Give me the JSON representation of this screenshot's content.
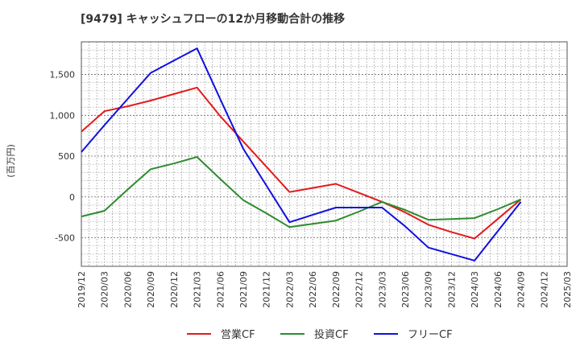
{
  "chart_data": {
    "type": "line",
    "title": "[9479]  キャッシュフローの12か月移動合計の推移",
    "ylabel": "(百万円)",
    "xlabel": "",
    "categories": [
      "2019/12",
      "2020/03",
      "2020/06",
      "2020/09",
      "2020/12",
      "2021/03",
      "2021/06",
      "2021/09",
      "2021/12",
      "2022/03",
      "2022/06",
      "2022/09",
      "2022/12",
      "2023/03",
      "2023/06",
      "2023/09",
      "2023/12",
      "2024/03",
      "2024/06",
      "2024/09",
      "2024/12",
      "2025/03"
    ],
    "ylim": [
      -850,
      1900
    ],
    "yticks": [
      -500,
      0,
      500,
      1000,
      1500
    ],
    "ytick_labels": [
      "-500",
      "0",
      "500",
      "1,000",
      "1,500"
    ],
    "grid": true,
    "legend_position": "bottom",
    "series": [
      {
        "name": "営業CF",
        "color": "#e31a1c",
        "values": [
          800,
          1050,
          1110,
          1180,
          1260,
          1340,
          990,
          680,
          370,
          60,
          110,
          160,
          50,
          -60,
          -190,
          -340,
          -430,
          -510,
          -270,
          -30,
          null,
          null
        ]
      },
      {
        "name": "投資CF",
        "color": "#2e8b2e",
        "values": [
          -240,
          -170,
          90,
          340,
          410,
          490,
          220,
          -40,
          -200,
          -370,
          -330,
          -290,
          -180,
          -60,
          -160,
          -280,
          -270,
          -260,
          -150,
          -30,
          null,
          null
        ]
      },
      {
        "name": "フリーCF",
        "color": "#1010e0",
        "values": [
          550,
          880,
          1200,
          1520,
          1670,
          1820,
          1200,
          590,
          140,
          -310,
          -220,
          -130,
          -130,
          -130,
          -360,
          -620,
          -700,
          -780,
          -420,
          -60,
          null,
          null
        ]
      }
    ]
  }
}
